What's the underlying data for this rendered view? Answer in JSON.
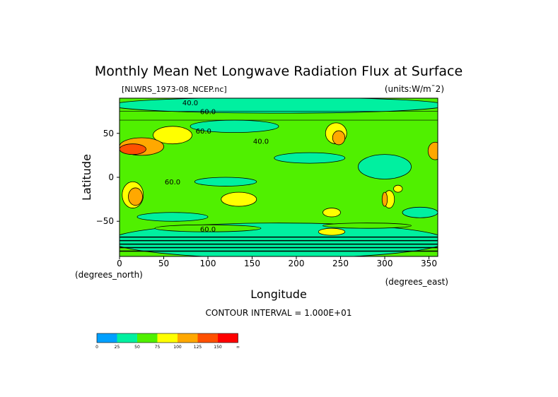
{
  "chart_data": {
    "type": "heatmap",
    "title": "Monthly Mean Net Longwave Radiation Flux at Surface",
    "file_label": "[NLWRS_1973-08_NCEP.nc]",
    "units_label": "(units:W/m¯2)",
    "xlabel": "Longitude",
    "ylabel": "Latitude",
    "x_unit_label": "(degrees_east)",
    "y_unit_label": "(degrees_north)",
    "xlim": [
      0,
      360
    ],
    "ylim": [
      -90,
      90
    ],
    "x_ticks": [
      0,
      50,
      100,
      150,
      200,
      250,
      300,
      350
    ],
    "y_ticks": [
      -50,
      0,
      50
    ],
    "contour_interval_text": "CONTOUR INTERVAL = 1.000E+01",
    "contour_labels": [
      {
        "text": "40.0",
        "lon": 80,
        "lat": 82
      },
      {
        "text": "60.0",
        "lon": 100,
        "lat": 72
      },
      {
        "text": "60.0",
        "lon": 95,
        "lat": 50
      },
      {
        "text": "40.0",
        "lon": 160,
        "lat": 38
      },
      {
        "text": "60.0",
        "lon": 60,
        "lat": -8
      },
      {
        "text": "60.0",
        "lon": 100,
        "lat": -62
      }
    ],
    "colorbar": {
      "labels": [
        "0",
        "25",
        "50",
        "75",
        "100",
        "125",
        "150",
        "∞"
      ],
      "colors": [
        "#00a0ff",
        "#00f0a0",
        "#50f000",
        "#ffff00",
        "#ffa800",
        "#ff5000",
        "#ff0000"
      ]
    },
    "background_level_color": "#50f000",
    "features": [
      {
        "lon": 180,
        "lat": 82,
        "rlon": 190,
        "rlat": 9,
        "level": 1
      },
      {
        "lon": 180,
        "lat": -72,
        "rlon": 190,
        "rlat": 20,
        "level": 1
      },
      {
        "lon": 130,
        "lat": 58,
        "rlon": 50,
        "rlat": 7,
        "level": 1
      },
      {
        "lon": 215,
        "lat": 22,
        "rlon": 40,
        "rlat": 6,
        "level": 1
      },
      {
        "lon": 120,
        "lat": -5,
        "rlon": 35,
        "rlat": 5,
        "level": 1
      },
      {
        "lon": 300,
        "lat": 12,
        "rlon": 30,
        "rlat": 14,
        "level": 1
      },
      {
        "lon": 60,
        "lat": -45,
        "rlon": 40,
        "rlat": 5,
        "level": 1
      },
      {
        "lon": 340,
        "lat": -40,
        "rlon": 20,
        "rlat": 6,
        "level": 1
      },
      {
        "lon": 100,
        "lat": -58,
        "rlon": 60,
        "rlat": 4,
        "level": 2
      },
      {
        "lon": 280,
        "lat": -55,
        "rlon": 50,
        "rlat": 3,
        "level": 2
      },
      {
        "lon": 60,
        "lat": 48,
        "rlon": 22,
        "rlat": 10,
        "level": 3
      },
      {
        "lon": 25,
        "lat": 35,
        "rlon": 25,
        "rlat": 10,
        "level": 4
      },
      {
        "lon": 15,
        "lat": 32,
        "rlon": 15,
        "rlat": 6,
        "level": 5
      },
      {
        "lon": 15,
        "lat": -20,
        "rlon": 12,
        "rlat": 15,
        "level": 3
      },
      {
        "lon": 18,
        "lat": -22,
        "rlon": 8,
        "rlat": 10,
        "level": 4
      },
      {
        "lon": 135,
        "lat": -25,
        "rlon": 20,
        "rlat": 8,
        "level": 3
      },
      {
        "lon": 245,
        "lat": 50,
        "rlon": 12,
        "rlat": 12,
        "level": 3
      },
      {
        "lon": 248,
        "lat": 45,
        "rlon": 7,
        "rlat": 8,
        "level": 4
      },
      {
        "lon": 357,
        "lat": 30,
        "rlon": 8,
        "rlat": 10,
        "level": 4
      },
      {
        "lon": 305,
        "lat": -25,
        "rlon": 6,
        "rlat": 10,
        "level": 3
      },
      {
        "lon": 300,
        "lat": -25,
        "rlon": 3,
        "rlat": 8,
        "level": 4
      },
      {
        "lon": 315,
        "lat": -13,
        "rlon": 5,
        "rlat": 4,
        "level": 3
      },
      {
        "lon": 240,
        "lat": -40,
        "rlon": 10,
        "rlat": 5,
        "level": 3
      },
      {
        "lon": 240,
        "lat": -62,
        "rlon": 15,
        "rlat": 4,
        "level": 3
      }
    ]
  }
}
